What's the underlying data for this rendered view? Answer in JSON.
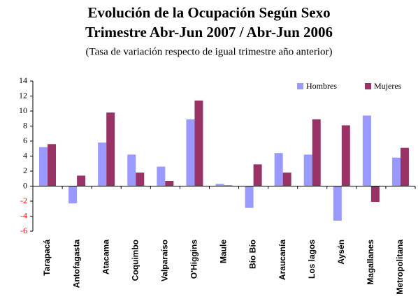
{
  "chart_data": {
    "type": "bar",
    "title": "Evolución de la Ocupación Según Sexo",
    "subtitle": "Trimestre Abr-Jun 2007 / Abr-Jun 2006",
    "note": "(Tasa de variación respecto de igual trimestre año anterior)",
    "categories": [
      "Tarapacá",
      "Antofagasta",
      "Atacama",
      "Coquimbo",
      "Valparaíso",
      "O'Higgins",
      "Maule",
      "Bío Bío",
      "Araucanía",
      "Los lagos",
      "Aysén",
      "Magallanes",
      "Metropolitana"
    ],
    "series": [
      {
        "name": "Hombres",
        "color": "#9999ff",
        "values": [
          5.2,
          -2.3,
          5.8,
          4.2,
          2.6,
          8.9,
          0.3,
          -2.9,
          4.4,
          4.2,
          -4.6,
          9.4,
          3.8
        ]
      },
      {
        "name": "Mujeres",
        "color": "#993366",
        "values": [
          5.6,
          1.4,
          9.8,
          1.8,
          0.7,
          11.4,
          0.1,
          2.9,
          1.8,
          8.9,
          8.1,
          -2.1,
          5.1
        ]
      }
    ],
    "ylim": [
      -6,
      14
    ],
    "yticks": [
      -6,
      -4,
      -2,
      0,
      2,
      4,
      6,
      8,
      10,
      12,
      14
    ],
    "negative_tick_color": "#ff0000",
    "legend": "top-right"
  }
}
